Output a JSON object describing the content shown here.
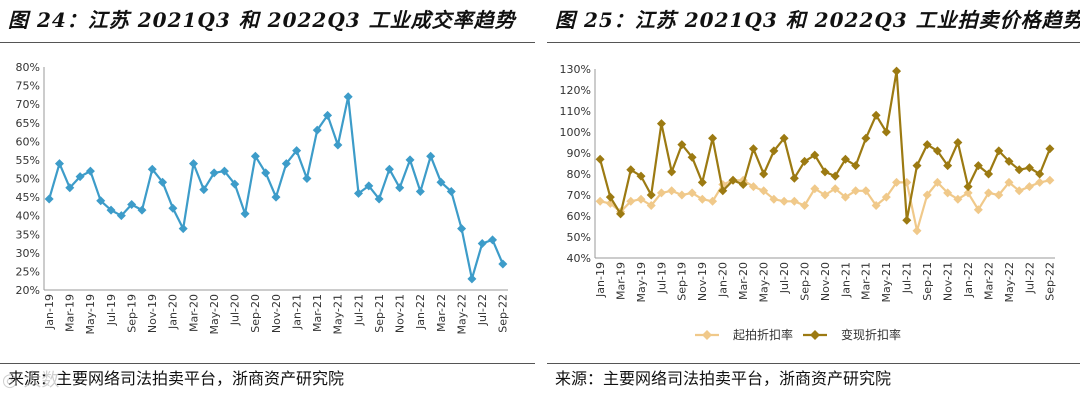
{
  "watermark": "◎ 大数",
  "chart_data": [
    {
      "type": "line",
      "title": "图 24：江苏 2021Q3 和 2022Q3 工业成交率趋势",
      "source": "来源：主要网络司法拍卖平台，浙商资产研究院",
      "ylim": [
        20,
        80
      ],
      "yticks": [
        "20%",
        "25%",
        "30%",
        "35%",
        "40%",
        "45%",
        "50%",
        "55%",
        "60%",
        "65%",
        "70%",
        "75%",
        "80%"
      ],
      "x": [
        "Jan-19",
        "Feb-19",
        "Mar-19",
        "Apr-19",
        "May-19",
        "Jun-19",
        "Jul-19",
        "Aug-19",
        "Sep-19",
        "Oct-19",
        "Nov-19",
        "Dec-19",
        "Jan-20",
        "Feb-20",
        "Mar-20",
        "Apr-20",
        "May-20",
        "Jun-20",
        "Jul-20",
        "Aug-20",
        "Sep-20",
        "Oct-20",
        "Nov-20",
        "Dec-20",
        "Jan-21",
        "Feb-21",
        "Mar-21",
        "Apr-21",
        "May-21",
        "Jun-21",
        "Jul-21",
        "Aug-21",
        "Sep-21",
        "Oct-21",
        "Nov-21",
        "Dec-21",
        "Jan-22",
        "Feb-22",
        "Mar-22",
        "Apr-22",
        "May-22",
        "Jun-22",
        "Jul-22",
        "Aug-22",
        "Sep-22"
      ],
      "xtick_labels": [
        "Jan-19",
        "Mar-19",
        "May-19",
        "Jul-19",
        "Sep-19",
        "Nov-19",
        "Jan-20",
        "Mar-20",
        "May-20",
        "Jul-20",
        "Sep-20",
        "Nov-20",
        "Jan-21",
        "Mar-21",
        "May-21",
        "Jul-21",
        "Sep-21",
        "Nov-21",
        "Jan-22",
        "Mar-22",
        "May-22",
        "Jul-22",
        "Sep-22"
      ],
      "series": [
        {
          "name": "成交率",
          "color": "#3d9cc9",
          "values": [
            44.5,
            54,
            47.5,
            50.5,
            52,
            44,
            41.5,
            40,
            43,
            41.5,
            52.5,
            49,
            42,
            36.5,
            54,
            47,
            51.5,
            52,
            48.5,
            40.5,
            56,
            51.5,
            45,
            54,
            57.5,
            50,
            63,
            67,
            59,
            72,
            46,
            48,
            44.5,
            52.5,
            47.5,
            55,
            46.5,
            56,
            49,
            46.5,
            36.5,
            23,
            32.5,
            33.5,
            27
          ]
        }
      ]
    },
    {
      "type": "line",
      "title": "图 25：江苏 2021Q3 和 2022Q3 工业拍卖价格趋势",
      "source": "来源：主要网络司法拍卖平台，浙商资产研究院",
      "ylim": [
        40,
        130
      ],
      "yticks": [
        "40%",
        "50%",
        "60%",
        "70%",
        "80%",
        "90%",
        "100%",
        "110%",
        "120%",
        "130%"
      ],
      "x": [
        "Jan-19",
        "Feb-19",
        "Mar-19",
        "Apr-19",
        "May-19",
        "Jun-19",
        "Jul-19",
        "Aug-19",
        "Sep-19",
        "Oct-19",
        "Nov-19",
        "Dec-19",
        "Jan-20",
        "Feb-20",
        "Mar-20",
        "Apr-20",
        "May-20",
        "Jun-20",
        "Jul-20",
        "Aug-20",
        "Sep-20",
        "Oct-20",
        "Nov-20",
        "Dec-20",
        "Jan-21",
        "Feb-21",
        "Mar-21",
        "Apr-21",
        "May-21",
        "Jun-21",
        "Jul-21",
        "Aug-21",
        "Sep-21",
        "Oct-21",
        "Nov-21",
        "Dec-21",
        "Jan-22",
        "Feb-22",
        "Mar-22",
        "Apr-22",
        "May-22",
        "Jun-22",
        "Jul-22",
        "Aug-22",
        "Sep-22"
      ],
      "xtick_labels": [
        "Jan-19",
        "Mar-19",
        "May-19",
        "Jul-19",
        "Sep-19",
        "Nov-19",
        "Jan-20",
        "Mar-20",
        "May-20",
        "Jul-20",
        "Sep-20",
        "Nov-20",
        "Jan-21",
        "Mar-21",
        "May-21",
        "Jul-21",
        "Sep-21",
        "Nov-21",
        "Jan-22",
        "Mar-22",
        "May-22",
        "Jul-22",
        "Sep-22"
      ],
      "legend_position": "bottom",
      "series": [
        {
          "name": "起拍折扣率",
          "color": "#f0c98a",
          "values": [
            67,
            66,
            62,
            67,
            68,
            65,
            71,
            72,
            70,
            71,
            68,
            67,
            75,
            77,
            77,
            74,
            72,
            68,
            67,
            67,
            65,
            73,
            70,
            73,
            69,
            72,
            72,
            65,
            69,
            76,
            76,
            53,
            70,
            76,
            71,
            68,
            71,
            63,
            71,
            70,
            76,
            72,
            74,
            76,
            77
          ]
        },
        {
          "name": "变现折扣率",
          "color": "#9c7a12",
          "values": [
            87,
            69,
            61,
            82,
            79,
            70,
            104,
            81,
            94,
            88,
            76,
            97,
            72,
            77,
            75,
            92,
            80,
            91,
            97,
            78,
            86,
            89,
            81,
            79,
            87,
            84,
            97,
            108,
            100,
            129,
            58,
            84,
            94,
            91,
            84,
            95,
            74,
            84,
            80,
            91,
            86,
            82,
            83,
            80,
            92
          ]
        }
      ]
    }
  ]
}
